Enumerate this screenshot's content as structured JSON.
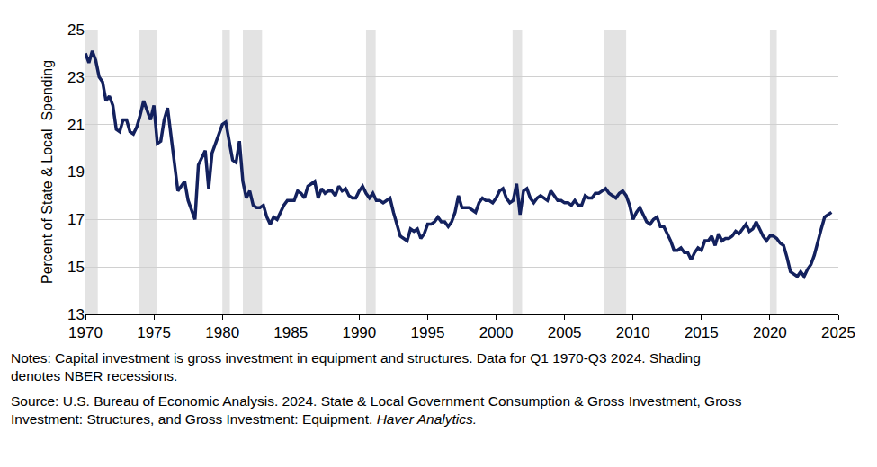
{
  "chart_data": {
    "type": "line",
    "y_label": "Percent of State & Local  Spending",
    "notes": [
      "Notes: Capital investment is gross investment in equipment and structures. Data for Q1 1970-Q3 2024. Shading",
      "denotes NBER recessions."
    ],
    "source": [
      "Source: U.S. Bureau of Economic Analysis. 2024. State & Local Government Consumption & Gross Investment, Gross",
      "Investment: Structures, and Gross Investment: Equipment."
    ],
    "source_italic": "Haver Analytics.",
    "xlim": [
      1970,
      2025
    ],
    "xticks": [
      1970,
      1975,
      1980,
      1985,
      1990,
      1995,
      2000,
      2005,
      2010,
      2015,
      2020,
      2025
    ],
    "ylim": [
      13,
      25
    ],
    "yticks": [
      13,
      15,
      17,
      19,
      21,
      23,
      25
    ],
    "grid": true,
    "recessions": [
      {
        "start": 1970.0,
        "end": 1970.9
      },
      {
        "start": 1973.9,
        "end": 1975.2
      },
      {
        "start": 1980.0,
        "end": 1980.55
      },
      {
        "start": 1981.5,
        "end": 1982.9
      },
      {
        "start": 1990.5,
        "end": 1991.2
      },
      {
        "start": 2001.2,
        "end": 2001.9
      },
      {
        "start": 2007.9,
        "end": 2009.5
      },
      {
        "start": 2020.0,
        "end": 2020.5
      }
    ],
    "color": "#13215e",
    "x": [
      1970,
      1970.25,
      1970.5,
      1970.75,
      1971,
      1971.25,
      1971.5,
      1971.75,
      1972,
      1972.25,
      1972.5,
      1972.75,
      1973,
      1973.25,
      1973.5,
      1973.75,
      1974,
      1974.25,
      1974.5,
      1974.75,
      1975,
      1975.25,
      1975.5,
      1975.75,
      1976,
      1976.25,
      1976.5,
      1976.75,
      1977,
      1977.25,
      1977.5,
      1977.75,
      1978,
      1978.25,
      1978.5,
      1978.75,
      1979,
      1979.25,
      1979.5,
      1979.75,
      1980,
      1980.25,
      1980.5,
      1980.75,
      1981,
      1981.25,
      1981.5,
      1981.75,
      1982,
      1982.25,
      1982.5,
      1982.75,
      1983,
      1983.25,
      1983.5,
      1983.75,
      1984,
      1984.25,
      1984.5,
      1984.75,
      1985,
      1985.25,
      1985.5,
      1985.75,
      1986,
      1986.25,
      1986.5,
      1986.75,
      1987,
      1987.25,
      1987.5,
      1987.75,
      1988,
      1988.25,
      1988.5,
      1988.75,
      1989,
      1989.25,
      1989.5,
      1989.75,
      1990,
      1990.25,
      1990.5,
      1990.75,
      1991,
      1991.25,
      1991.5,
      1991.75,
      1992,
      1992.25,
      1992.5,
      1992.75,
      1993,
      1993.25,
      1993.5,
      1993.75,
      1994,
      1994.25,
      1994.5,
      1994.75,
      1995,
      1995.25,
      1995.5,
      1995.75,
      1996,
      1996.25,
      1996.5,
      1996.75,
      1997,
      1997.25,
      1997.5,
      1997.75,
      1998,
      1998.25,
      1998.5,
      1998.75,
      1999,
      1999.25,
      1999.5,
      1999.75,
      2000,
      2000.25,
      2000.5,
      2000.75,
      2001,
      2001.25,
      2001.5,
      2001.75,
      2002,
      2002.25,
      2002.5,
      2002.75,
      2003,
      2003.25,
      2003.5,
      2003.75,
      2004,
      2004.25,
      2004.5,
      2004.75,
      2005,
      2005.25,
      2005.5,
      2005.75,
      2006,
      2006.25,
      2006.5,
      2006.75,
      2007,
      2007.25,
      2007.5,
      2007.75,
      2008,
      2008.25,
      2008.5,
      2008.75,
      2009,
      2009.25,
      2009.5,
      2009.75,
      2010,
      2010.25,
      2010.5,
      2010.75,
      2011,
      2011.25,
      2011.5,
      2011.75,
      2012,
      2012.25,
      2012.5,
      2012.75,
      2013,
      2013.25,
      2013.5,
      2013.75,
      2014,
      2014.25,
      2014.5,
      2014.75,
      2015,
      2015.25,
      2015.5,
      2015.75,
      2016,
      2016.25,
      2016.5,
      2016.75,
      2017,
      2017.25,
      2017.5,
      2017.75,
      2018,
      2018.25,
      2018.5,
      2018.75,
      2019,
      2019.25,
      2019.5,
      2019.75,
      2020,
      2020.25,
      2020.5,
      2020.75,
      2021,
      2021.25,
      2021.5,
      2021.75,
      2022,
      2022.25,
      2022.5,
      2022.75,
      2023,
      2023.25,
      2023.5,
      2023.75,
      2024,
      2024.25,
      2024.5
    ],
    "values": [
      24.0,
      23.6,
      24.1,
      23.7,
      23.0,
      22.8,
      22.0,
      22.2,
      21.8,
      20.8,
      20.7,
      21.2,
      21.2,
      20.7,
      20.6,
      20.9,
      21.4,
      22.0,
      21.6,
      21.2,
      21.8,
      20.2,
      20.3,
      21.2,
      21.7,
      20.5,
      19.3,
      18.2,
      18.4,
      18.6,
      17.8,
      17.4,
      17.0,
      19.3,
      19.6,
      19.9,
      18.3,
      19.8,
      20.2,
      20.6,
      21.0,
      21.1,
      20.3,
      19.5,
      19.4,
      20.3,
      18.6,
      17.9,
      18.2,
      17.6,
      17.5,
      17.5,
      17.6,
      17.1,
      16.8,
      17.1,
      17.0,
      17.3,
      17.6,
      17.8,
      17.8,
      17.8,
      18.2,
      18.1,
      17.9,
      18.4,
      18.5,
      18.6,
      17.9,
      18.3,
      18.1,
      18.2,
      18.2,
      18.0,
      18.4,
      18.2,
      18.3,
      18.0,
      17.9,
      17.9,
      18.2,
      18.4,
      18.1,
      17.9,
      18.1,
      17.8,
      17.8,
      17.7,
      17.8,
      17.9,
      17.3,
      16.8,
      16.3,
      16.2,
      16.1,
      16.6,
      16.5,
      16.6,
      16.2,
      16.4,
      16.8,
      16.8,
      16.9,
      17.1,
      16.9,
      16.9,
      16.7,
      16.9,
      17.3,
      18.0,
      17.5,
      17.5,
      17.5,
      17.4,
      17.3,
      17.7,
      17.9,
      17.8,
      17.8,
      17.7,
      17.9,
      18.2,
      18.3,
      17.9,
      17.7,
      17.8,
      18.5,
      17.2,
      18.2,
      18.3,
      17.9,
      17.7,
      17.9,
      18.0,
      17.9,
      17.8,
      18.2,
      18.0,
      17.8,
      17.8,
      17.7,
      17.7,
      17.6,
      17.8,
      17.6,
      17.6,
      18.0,
      17.9,
      17.9,
      18.1,
      18.1,
      18.2,
      18.3,
      18.1,
      18.0,
      17.9,
      18.1,
      18.2,
      18.0,
      17.6,
      17.0,
      17.3,
      17.5,
      17.2,
      16.9,
      16.8,
      17.0,
      17.1,
      16.7,
      16.7,
      16.4,
      16.1,
      15.7,
      15.7,
      15.8,
      15.6,
      15.6,
      15.3,
      15.6,
      15.8,
      15.7,
      16.1,
      16.1,
      16.3,
      15.9,
      16.4,
      16.1,
      16.2,
      16.2,
      16.3,
      16.5,
      16.4,
      16.6,
      16.8,
      16.5,
      16.6,
      16.9,
      16.6,
      16.3,
      16.1,
      16.3,
      16.3,
      16.2,
      16.0,
      15.9,
      15.4,
      14.8,
      14.7,
      14.6,
      14.8,
      14.6,
      14.9,
      15.1,
      15.5,
      16.1,
      16.6,
      17.1,
      17.2,
      17.3
    ]
  }
}
